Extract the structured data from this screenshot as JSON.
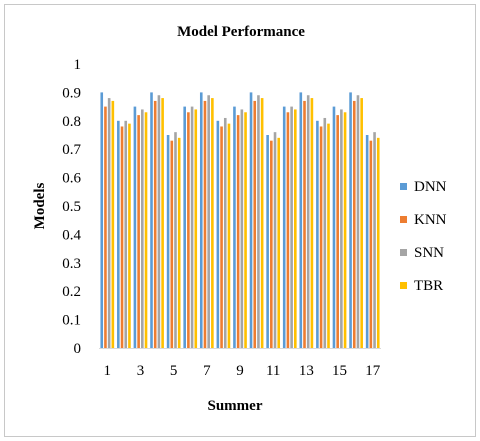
{
  "chart_data": {
    "type": "bar",
    "title": "Model Performance",
    "xlabel": "Summer",
    "ylabel": "Models",
    "ylim": [
      0,
      1
    ],
    "y_ticks": [
      "0",
      "0.1",
      "0.2",
      "0.3",
      "0.4",
      "0.5",
      "0.6",
      "0.7",
      "0.8",
      "0.9",
      "1"
    ],
    "categories": [
      "1",
      "2",
      "3",
      "4",
      "5",
      "6",
      "7",
      "8",
      "9",
      "10",
      "11",
      "12",
      "13",
      "14",
      "15",
      "16",
      "17"
    ],
    "x_tick_labels": [
      "1",
      "3",
      "5",
      "7",
      "9",
      "11",
      "13",
      "15",
      "17"
    ],
    "grid": false,
    "legend_position": "right",
    "series": [
      {
        "name": "DNN",
        "color": "#5B9BD5",
        "values": [
          0.9,
          0.8,
          0.85,
          0.9,
          0.75,
          0.85,
          0.9,
          0.8,
          0.85,
          0.9,
          0.75,
          0.85,
          0.9,
          0.8,
          0.85,
          0.9,
          0.75
        ]
      },
      {
        "name": "KNN",
        "color": "#ED7D31",
        "values": [
          0.85,
          0.78,
          0.82,
          0.87,
          0.73,
          0.83,
          0.87,
          0.78,
          0.82,
          0.87,
          0.73,
          0.83,
          0.87,
          0.78,
          0.82,
          0.87,
          0.73
        ]
      },
      {
        "name": "SNN",
        "color": "#A5A5A5",
        "values": [
          0.88,
          0.8,
          0.84,
          0.89,
          0.76,
          0.85,
          0.89,
          0.81,
          0.84,
          0.89,
          0.76,
          0.85,
          0.89,
          0.81,
          0.84,
          0.89,
          0.76
        ]
      },
      {
        "name": "TBR",
        "color": "#FFC000",
        "values": [
          0.87,
          0.79,
          0.83,
          0.88,
          0.74,
          0.84,
          0.88,
          0.79,
          0.83,
          0.88,
          0.74,
          0.84,
          0.88,
          0.79,
          0.83,
          0.88,
          0.74
        ]
      }
    ]
  }
}
